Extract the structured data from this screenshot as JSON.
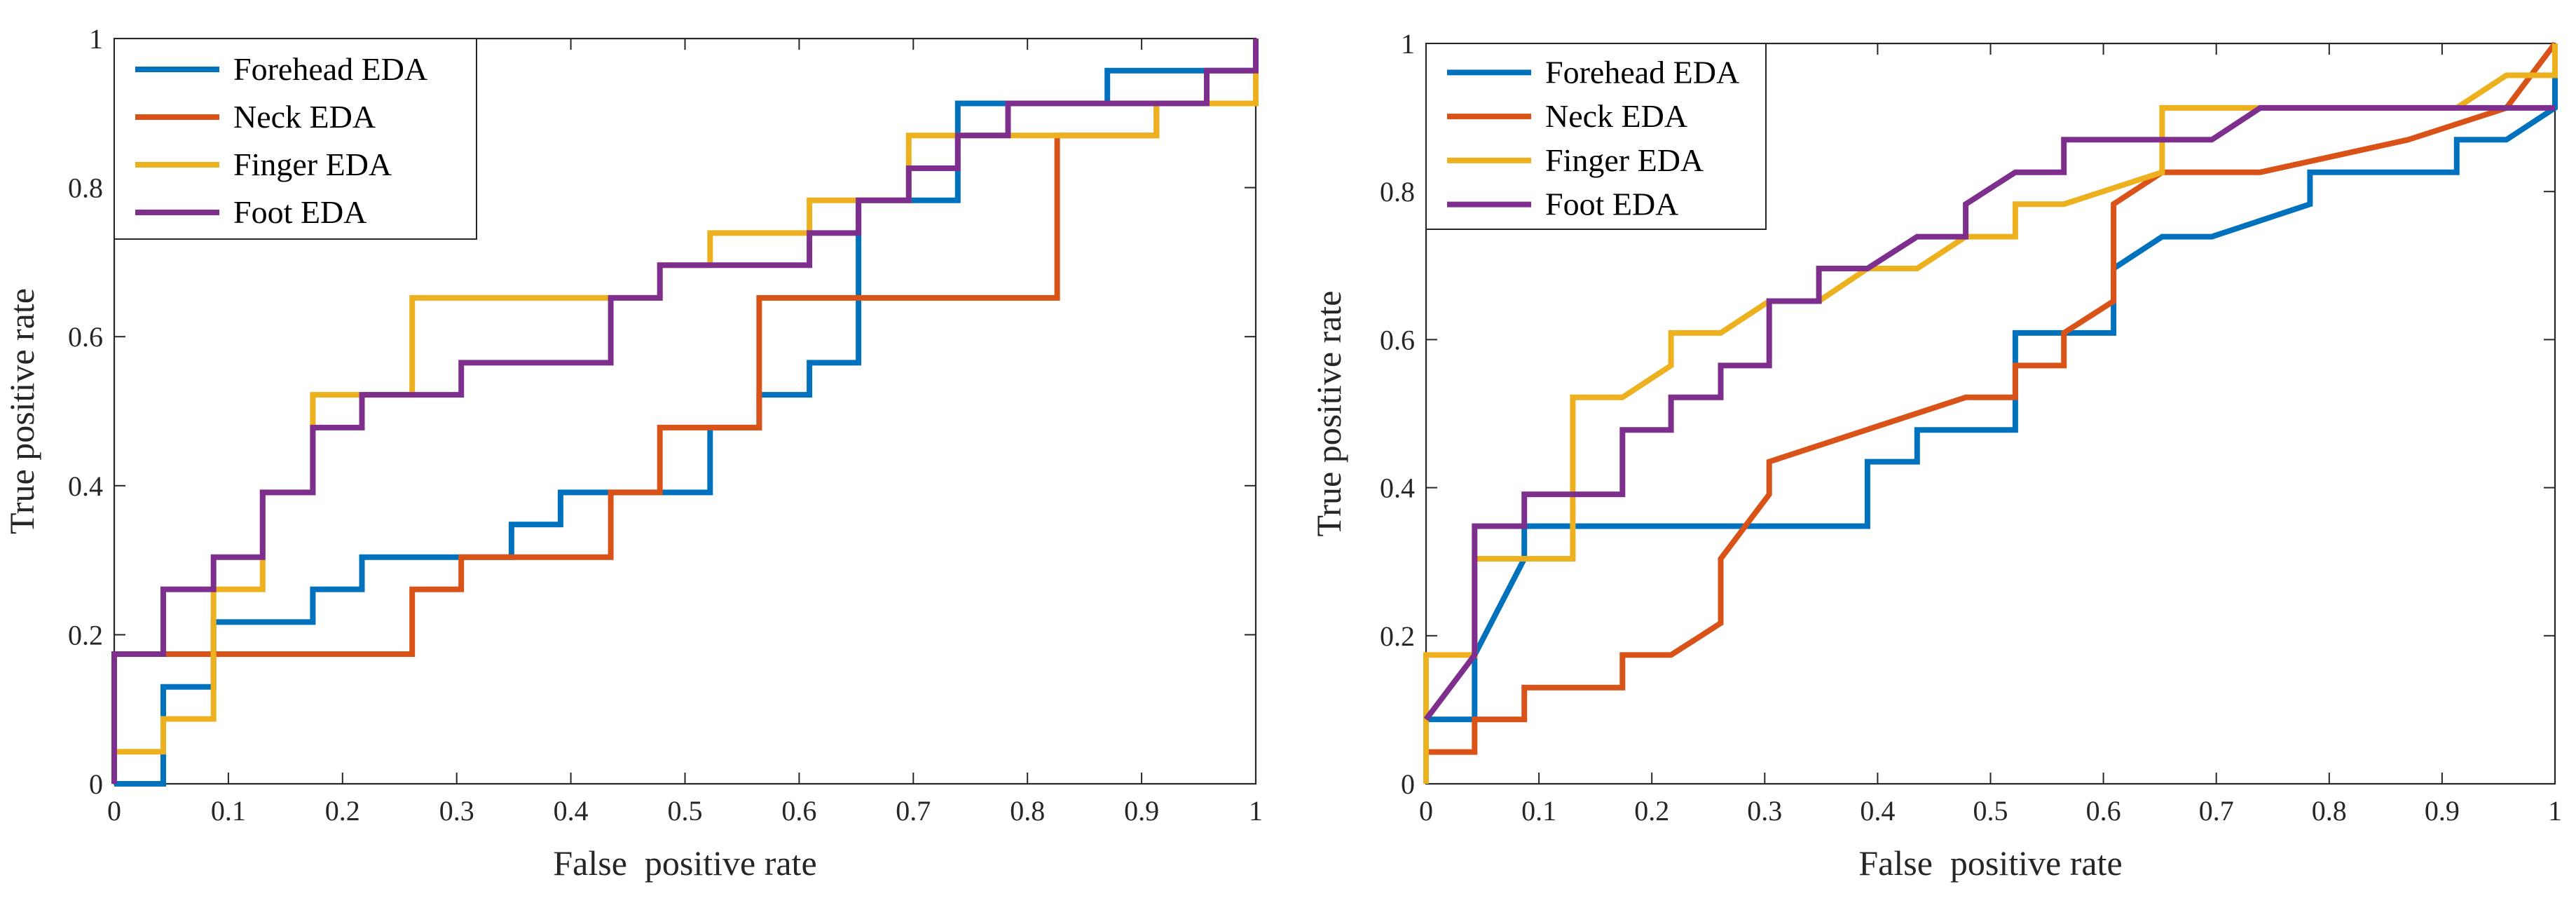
{
  "colors": {
    "forehead": "#0072BD",
    "neck": "#D95319",
    "finger": "#EDB120",
    "foot": "#7E2F8E",
    "axis": "#262626"
  },
  "chart_data": [
    {
      "type": "line",
      "title": "",
      "xlabel": "False  positive rate",
      "ylabel": "True positive rate",
      "xlim": [
        0,
        1
      ],
      "ylim": [
        0,
        1
      ],
      "xticks": [
        "0",
        "0.1",
        "0.2",
        "0.3",
        "0.4",
        "0.5",
        "0.6",
        "0.7",
        "0.8",
        "0.9",
        "1"
      ],
      "yticks": [
        "0",
        "0.2",
        "0.4",
        "0.6",
        "0.8",
        "1"
      ],
      "grid": false,
      "legend_position": "top-left",
      "series": [
        {
          "name": "Forehead EDA",
          "color_key": "forehead",
          "points": [
            [
              0,
              0
            ],
            [
              0.043,
              0
            ],
            [
              0.043,
              0.13
            ],
            [
              0.087,
              0.13
            ],
            [
              0.087,
              0.217
            ],
            [
              0.174,
              0.217
            ],
            [
              0.174,
              0.261
            ],
            [
              0.217,
              0.261
            ],
            [
              0.217,
              0.304
            ],
            [
              0.348,
              0.304
            ],
            [
              0.348,
              0.348
            ],
            [
              0.391,
              0.348
            ],
            [
              0.391,
              0.391
            ],
            [
              0.522,
              0.391
            ],
            [
              0.522,
              0.478
            ],
            [
              0.565,
              0.478
            ],
            [
              0.565,
              0.522
            ],
            [
              0.609,
              0.522
            ],
            [
              0.609,
              0.565
            ],
            [
              0.652,
              0.565
            ],
            [
              0.652,
              0.783
            ],
            [
              0.739,
              0.783
            ],
            [
              0.739,
              0.913
            ],
            [
              0.87,
              0.913
            ],
            [
              0.87,
              0.957
            ],
            [
              1,
              0.957
            ],
            [
              1,
              1
            ]
          ]
        },
        {
          "name": "Neck EDA",
          "color_key": "neck",
          "points": [
            [
              0,
              0
            ],
            [
              0,
              0.174
            ],
            [
              0.261,
              0.174
            ],
            [
              0.261,
              0.261
            ],
            [
              0.304,
              0.261
            ],
            [
              0.304,
              0.304
            ],
            [
              0.435,
              0.304
            ],
            [
              0.435,
              0.391
            ],
            [
              0.478,
              0.391
            ],
            [
              0.478,
              0.478
            ],
            [
              0.565,
              0.478
            ],
            [
              0.565,
              0.652
            ],
            [
              0.826,
              0.652
            ],
            [
              0.826,
              0.87
            ],
            [
              0.913,
              0.87
            ],
            [
              0.913,
              0.913
            ],
            [
              1,
              0.913
            ],
            [
              1,
              1
            ]
          ]
        },
        {
          "name": "Finger EDA",
          "color_key": "finger",
          "points": [
            [
              0,
              0
            ],
            [
              0,
              0.043
            ],
            [
              0.043,
              0.043
            ],
            [
              0.043,
              0.087
            ],
            [
              0.087,
              0.087
            ],
            [
              0.087,
              0.261
            ],
            [
              0.13,
              0.261
            ],
            [
              0.13,
              0.391
            ],
            [
              0.174,
              0.391
            ],
            [
              0.174,
              0.522
            ],
            [
              0.261,
              0.522
            ],
            [
              0.261,
              0.652
            ],
            [
              0.478,
              0.652
            ],
            [
              0.478,
              0.696
            ],
            [
              0.522,
              0.696
            ],
            [
              0.522,
              0.739
            ],
            [
              0.609,
              0.739
            ],
            [
              0.609,
              0.783
            ],
            [
              0.696,
              0.783
            ],
            [
              0.696,
              0.87
            ],
            [
              0.913,
              0.87
            ],
            [
              0.913,
              0.913
            ],
            [
              1,
              0.913
            ],
            [
              1,
              1
            ]
          ]
        },
        {
          "name": "Foot EDA",
          "color_key": "foot",
          "points": [
            [
              0,
              0
            ],
            [
              0,
              0.174
            ],
            [
              0.043,
              0.174
            ],
            [
              0.043,
              0.261
            ],
            [
              0.087,
              0.261
            ],
            [
              0.087,
              0.304
            ],
            [
              0.13,
              0.304
            ],
            [
              0.13,
              0.391
            ],
            [
              0.174,
              0.391
            ],
            [
              0.174,
              0.478
            ],
            [
              0.217,
              0.478
            ],
            [
              0.217,
              0.522
            ],
            [
              0.304,
              0.522
            ],
            [
              0.304,
              0.565
            ],
            [
              0.435,
              0.565
            ],
            [
              0.435,
              0.652
            ],
            [
              0.478,
              0.652
            ],
            [
              0.478,
              0.696
            ],
            [
              0.609,
              0.696
            ],
            [
              0.609,
              0.739
            ],
            [
              0.652,
              0.739
            ],
            [
              0.652,
              0.783
            ],
            [
              0.696,
              0.783
            ],
            [
              0.696,
              0.826
            ],
            [
              0.739,
              0.826
            ],
            [
              0.739,
              0.87
            ],
            [
              0.783,
              0.87
            ],
            [
              0.783,
              0.913
            ],
            [
              0.957,
              0.913
            ],
            [
              0.957,
              0.957
            ],
            [
              1,
              0.957
            ],
            [
              1,
              1
            ]
          ]
        }
      ]
    },
    {
      "type": "line",
      "title": "",
      "xlabel": "False  positive rate",
      "ylabel": "True positive rate",
      "xlim": [
        0,
        1
      ],
      "ylim": [
        0,
        1
      ],
      "xticks": [
        "0",
        "0.1",
        "0.2",
        "0.3",
        "0.4",
        "0.5",
        "0.6",
        "0.7",
        "0.8",
        "0.9",
        "1"
      ],
      "yticks": [
        "0",
        "0.2",
        "0.4",
        "0.6",
        "0.8",
        "1"
      ],
      "grid": false,
      "legend_position": "top-left",
      "series": [
        {
          "name": "Forehead EDA",
          "color_key": "forehead",
          "points": [
            [
              0,
              0
            ],
            [
              0,
              0.087
            ],
            [
              0.043,
              0.087
            ],
            [
              0.043,
              0.174
            ],
            [
              0.087,
              0.304
            ],
            [
              0.087,
              0.348
            ],
            [
              0.391,
              0.348
            ],
            [
              0.391,
              0.435
            ],
            [
              0.435,
              0.435
            ],
            [
              0.435,
              0.478
            ],
            [
              0.522,
              0.478
            ],
            [
              0.522,
              0.609
            ],
            [
              0.609,
              0.609
            ],
            [
              0.609,
              0.696
            ],
            [
              0.652,
              0.739
            ],
            [
              0.696,
              0.739
            ],
            [
              0.783,
              0.783
            ],
            [
              0.783,
              0.826
            ],
            [
              0.913,
              0.826
            ],
            [
              0.913,
              0.87
            ],
            [
              0.957,
              0.87
            ],
            [
              1,
              0.913
            ],
            [
              1,
              1
            ]
          ]
        },
        {
          "name": "Neck EDA",
          "color_key": "neck",
          "points": [
            [
              0,
              0
            ],
            [
              0,
              0.043
            ],
            [
              0.043,
              0.043
            ],
            [
              0.043,
              0.087
            ],
            [
              0.087,
              0.087
            ],
            [
              0.087,
              0.13
            ],
            [
              0.174,
              0.13
            ],
            [
              0.174,
              0.174
            ],
            [
              0.217,
              0.174
            ],
            [
              0.261,
              0.217
            ],
            [
              0.261,
              0.304
            ],
            [
              0.304,
              0.391
            ],
            [
              0.304,
              0.435
            ],
            [
              0.478,
              0.522
            ],
            [
              0.522,
              0.522
            ],
            [
              0.522,
              0.565
            ],
            [
              0.565,
              0.565
            ],
            [
              0.565,
              0.609
            ],
            [
              0.609,
              0.652
            ],
            [
              0.609,
              0.783
            ],
            [
              0.652,
              0.826
            ],
            [
              0.739,
              0.826
            ],
            [
              0.87,
              0.87
            ],
            [
              0.957,
              0.913
            ],
            [
              1,
              1
            ]
          ]
        },
        {
          "name": "Finger EDA",
          "color_key": "finger",
          "points": [
            [
              0,
              0
            ],
            [
              0,
              0.174
            ],
            [
              0.043,
              0.174
            ],
            [
              0.043,
              0.304
            ],
            [
              0.13,
              0.304
            ],
            [
              0.13,
              0.522
            ],
            [
              0.174,
              0.522
            ],
            [
              0.217,
              0.565
            ],
            [
              0.217,
              0.609
            ],
            [
              0.261,
              0.609
            ],
            [
              0.304,
              0.652
            ],
            [
              0.348,
              0.652
            ],
            [
              0.391,
              0.696
            ],
            [
              0.435,
              0.696
            ],
            [
              0.478,
              0.739
            ],
            [
              0.522,
              0.739
            ],
            [
              0.522,
              0.783
            ],
            [
              0.565,
              0.783
            ],
            [
              0.652,
              0.826
            ],
            [
              0.652,
              0.913
            ],
            [
              0.913,
              0.913
            ],
            [
              0.957,
              0.957
            ],
            [
              1,
              0.957
            ],
            [
              1,
              1
            ]
          ]
        },
        {
          "name": "Foot EDA",
          "color_key": "foot",
          "points": [
            [
              0,
              0.087
            ],
            [
              0.043,
              0.174
            ],
            [
              0.043,
              0.348
            ],
            [
              0.087,
              0.348
            ],
            [
              0.087,
              0.391
            ],
            [
              0.174,
              0.391
            ],
            [
              0.174,
              0.478
            ],
            [
              0.217,
              0.478
            ],
            [
              0.217,
              0.522
            ],
            [
              0.261,
              0.522
            ],
            [
              0.261,
              0.565
            ],
            [
              0.304,
              0.565
            ],
            [
              0.304,
              0.652
            ],
            [
              0.348,
              0.652
            ],
            [
              0.348,
              0.696
            ],
            [
              0.391,
              0.696
            ],
            [
              0.435,
              0.739
            ],
            [
              0.478,
              0.739
            ],
            [
              0.478,
              0.783
            ],
            [
              0.522,
              0.826
            ],
            [
              0.565,
              0.826
            ],
            [
              0.565,
              0.87
            ],
            [
              0.696,
              0.87
            ],
            [
              0.739,
              0.913
            ],
            [
              1,
              0.913
            ],
            [
              1,
              0.913
            ]
          ]
        }
      ]
    }
  ]
}
